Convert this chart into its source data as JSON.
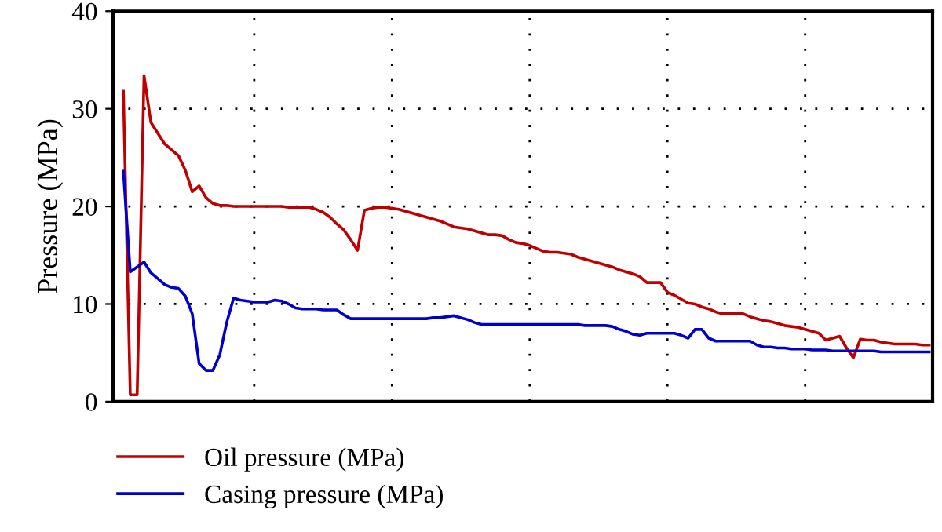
{
  "chart_data": {
    "type": "line",
    "ylabel": "Pressure (MPa)",
    "categories": [
      null,
      null,
      null,
      null,
      null,
      null,
      null,
      null,
      null,
      null,
      null,
      null,
      null,
      null,
      null,
      null,
      null,
      null,
      null,
      null,
      null,
      null,
      null,
      null,
      null,
      null,
      null,
      null,
      null,
      null,
      null,
      null,
      null,
      null,
      null,
      null,
      null,
      null,
      null,
      null,
      null,
      null,
      null,
      null,
      null,
      null,
      null,
      null,
      null,
      null,
      null,
      null,
      null,
      null,
      null,
      null,
      null,
      null,
      null,
      null,
      null,
      null,
      null,
      null,
      null,
      null,
      null,
      null,
      null,
      null,
      null,
      null,
      null,
      null,
      null,
      null,
      null,
      null,
      null,
      null,
      null,
      null,
      null,
      null,
      null,
      null,
      null,
      null,
      null,
      null,
      null,
      null,
      null,
      null,
      null,
      null,
      null,
      null,
      null,
      null,
      null,
      null,
      null,
      null,
      null,
      null,
      null,
      null,
      null,
      null,
      null,
      null,
      null,
      null,
      null,
      null,
      null,
      null,
      null
    ],
    "ylim": [
      0,
      40
    ],
    "yticks": [
      0,
      10,
      20,
      30,
      40
    ],
    "tick_labels": "y",
    "grid": true,
    "legend": "bottom",
    "line_style": "solid",
    "series": [
      {
        "name": "Oil pressure (MPa)",
        "color": "#c00000",
        "values": [
          null,
          31.8,
          0.7,
          0.7,
          33.4,
          28.6,
          27.5,
          26.4,
          25.8,
          25.2,
          23.7,
          21.5,
          22.1,
          20.9,
          20.3,
          20.1,
          20.1,
          20.0,
          20.0,
          20.0,
          20.0,
          20.0,
          20.0,
          20.0,
          20.0,
          19.9,
          19.9,
          19.9,
          19.9,
          19.7,
          19.4,
          18.9,
          18.2,
          17.6,
          16.6,
          15.5,
          19.6,
          19.8,
          19.9,
          19.9,
          19.8,
          19.7,
          19.5,
          19.3,
          19.1,
          18.9,
          18.7,
          18.5,
          18.2,
          17.9,
          17.8,
          17.7,
          17.5,
          17.3,
          17.1,
          17.1,
          17.0,
          16.6,
          16.3,
          16.2,
          16.0,
          15.7,
          15.4,
          15.3,
          15.3,
          15.2,
          15.1,
          14.8,
          14.6,
          14.4,
          14.2,
          14.0,
          13.8,
          13.5,
          13.3,
          13.1,
          12.8,
          12.2,
          12.2,
          12.2,
          11.2,
          10.9,
          10.5,
          10.1,
          10.0,
          9.7,
          9.5,
          9.2,
          9.0,
          9.0,
          9.0,
          9.0,
          8.7,
          8.5,
          8.3,
          8.2,
          8.0,
          7.8,
          7.7,
          7.6,
          7.4,
          7.2,
          7.0,
          6.3,
          6.5,
          6.7,
          5.5,
          4.5,
          6.4,
          6.3,
          6.3,
          6.1,
          6.0,
          5.9,
          5.9,
          5.9,
          5.9,
          5.8,
          5.8
        ]
      },
      {
        "name": "Casing pressure (MPa)",
        "color": "#0000cc",
        "values": [
          null,
          23.6,
          13.3,
          13.8,
          14.3,
          13.2,
          12.6,
          12.0,
          11.7,
          11.6,
          10.8,
          9.0,
          3.9,
          3.2,
          3.2,
          4.8,
          8.1,
          10.6,
          10.4,
          10.3,
          10.2,
          10.2,
          10.2,
          10.4,
          10.3,
          10.0,
          9.6,
          9.5,
          9.5,
          9.5,
          9.4,
          9.4,
          9.4,
          8.9,
          8.5,
          8.5,
          8.5,
          8.5,
          8.5,
          8.5,
          8.5,
          8.5,
          8.5,
          8.5,
          8.5,
          8.5,
          8.6,
          8.6,
          8.7,
          8.8,
          8.6,
          8.4,
          8.1,
          7.9,
          7.9,
          7.9,
          7.9,
          7.9,
          7.9,
          7.9,
          7.9,
          7.9,
          7.9,
          7.9,
          7.9,
          7.9,
          7.9,
          7.9,
          7.8,
          7.8,
          7.8,
          7.8,
          7.7,
          7.4,
          7.2,
          6.9,
          6.8,
          7.0,
          7.0,
          7.0,
          7.0,
          7.0,
          6.8,
          6.5,
          7.4,
          7.4,
          6.5,
          6.2,
          6.2,
          6.2,
          6.2,
          6.2,
          6.2,
          5.8,
          5.6,
          5.6,
          5.5,
          5.5,
          5.4,
          5.4,
          5.4,
          5.3,
          5.3,
          5.3,
          5.2,
          5.2,
          5.2,
          5.2,
          5.2,
          5.2,
          5.2,
          5.1,
          5.1,
          5.1,
          5.1,
          5.1,
          5.1,
          5.1,
          5.1
        ]
      }
    ]
  }
}
